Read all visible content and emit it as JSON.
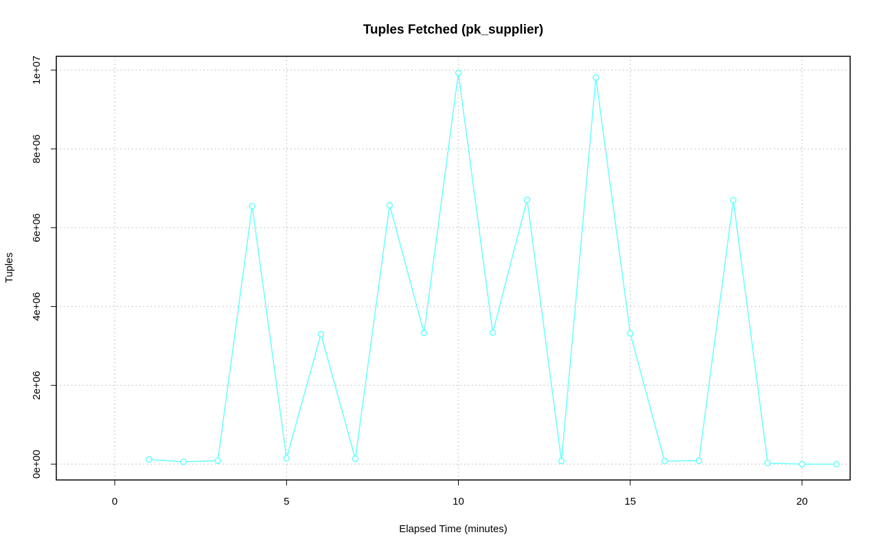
{
  "chart_data": {
    "type": "line",
    "title": "Tuples Fetched (pk_supplier)",
    "xlabel": "Elapsed Time (minutes)",
    "ylabel": "Tuples",
    "xlim": [
      -1.7,
      21.4
    ],
    "ylim": [
      -400000,
      10350000
    ],
    "x_ticks": [
      0,
      5,
      10,
      15,
      20
    ],
    "y_ticks": [
      0,
      2000000,
      4000000,
      6000000,
      8000000,
      10000000
    ],
    "x_tick_labels": [
      "0",
      "5",
      "10",
      "15",
      "20"
    ],
    "y_tick_labels": [
      "0e+00",
      "2e+06",
      "4e+06",
      "6e+06",
      "8e+06",
      "1e+07"
    ],
    "grid": true,
    "series": [
      {
        "color": "#66ffff",
        "x": [
          1,
          2,
          3,
          4,
          5,
          6,
          7,
          8,
          9,
          10,
          11,
          12,
          13,
          14,
          15,
          16,
          17,
          18,
          19,
          20,
          21
        ],
        "y": [
          120000,
          60000,
          90000,
          6550000,
          150000,
          3300000,
          140000,
          6570000,
          3330000,
          9930000,
          3340000,
          6710000,
          80000,
          9810000,
          3320000,
          80000,
          90000,
          6700000,
          30000,
          0,
          0
        ]
      }
    ]
  }
}
